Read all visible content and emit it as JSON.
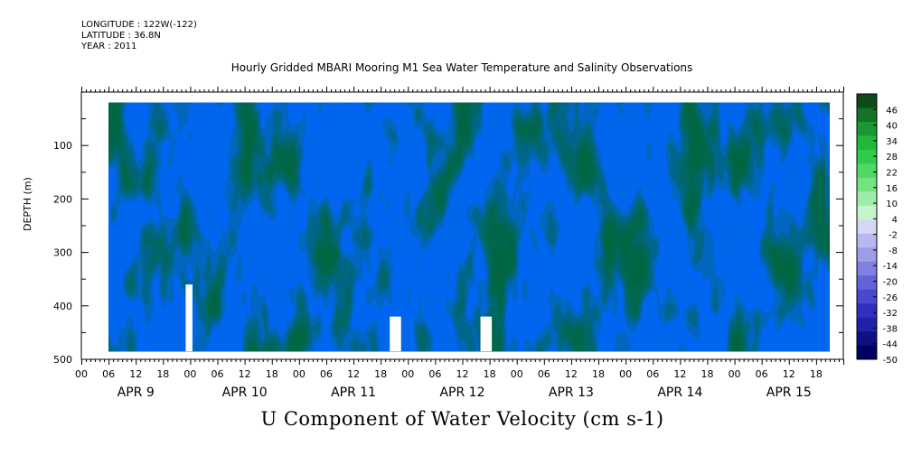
{
  "header": {
    "longitude": "LONGITUDE : 122W(-122)",
    "latitude": "LATITUDE : 36.8N",
    "year": "YEAR : 2011"
  },
  "chart_data": {
    "type": "heatmap",
    "title": "Hourly Gridded MBARI Mooring M1 Sea Water Temperature and Salinity Observations",
    "xlabel": "U Component of Water Velocity (cm s-1)",
    "ylabel": "DEPTH (m)",
    "y_axis": {
      "range": [
        0,
        500
      ],
      "inverted": true,
      "tick_labels": [
        "100",
        "200",
        "300",
        "400",
        "500"
      ],
      "tick_values": [
        100,
        200,
        300,
        400,
        500
      ]
    },
    "x_axis": {
      "range_hours": [
        0,
        168
      ],
      "hour_tick_labels": [
        "00",
        "06",
        "12",
        "18"
      ],
      "day_labels": [
        "APR  9",
        "APR 10",
        "APR 11",
        "APR 12",
        "APR 13",
        "APR 14",
        "APR 15"
      ]
    },
    "data_extent": {
      "time_start_hour": 6,
      "time_end_hour": 165,
      "depth_top": 20,
      "depth_bottom": 485
    },
    "missing_data_regions": [
      {
        "time_start": 23.0,
        "time_end": 24.5,
        "depth_top": 360,
        "depth_bottom": 485
      },
      {
        "time_start": 68.0,
        "time_end": 70.5,
        "depth_top": 420,
        "depth_bottom": 485
      },
      {
        "time_start": 88.0,
        "time_end": 90.5,
        "depth_top": 420,
        "depth_bottom": 485
      }
    ],
    "colorbar": {
      "levels": [
        46,
        40,
        34,
        28,
        22,
        16,
        10,
        4,
        -2,
        -8,
        -14,
        -20,
        -26,
        -32,
        -38,
        -44,
        -50
      ],
      "range": [
        -50,
        52
      ],
      "colors_top_to_bottom": [
        "#0d4a1a",
        "#137326",
        "#1a9932",
        "#21b83c",
        "#2ecc4a",
        "#4fd864",
        "#73e384",
        "#9cedaa",
        "#c6f5cc",
        "#d6d6f5",
        "#b8b8f0",
        "#9e9ee8",
        "#8080e0",
        "#6464d8",
        "#4848d0",
        "#3030c0",
        "#2020a8",
        "#101080",
        "#000060"
      ]
    },
    "grid": false
  }
}
